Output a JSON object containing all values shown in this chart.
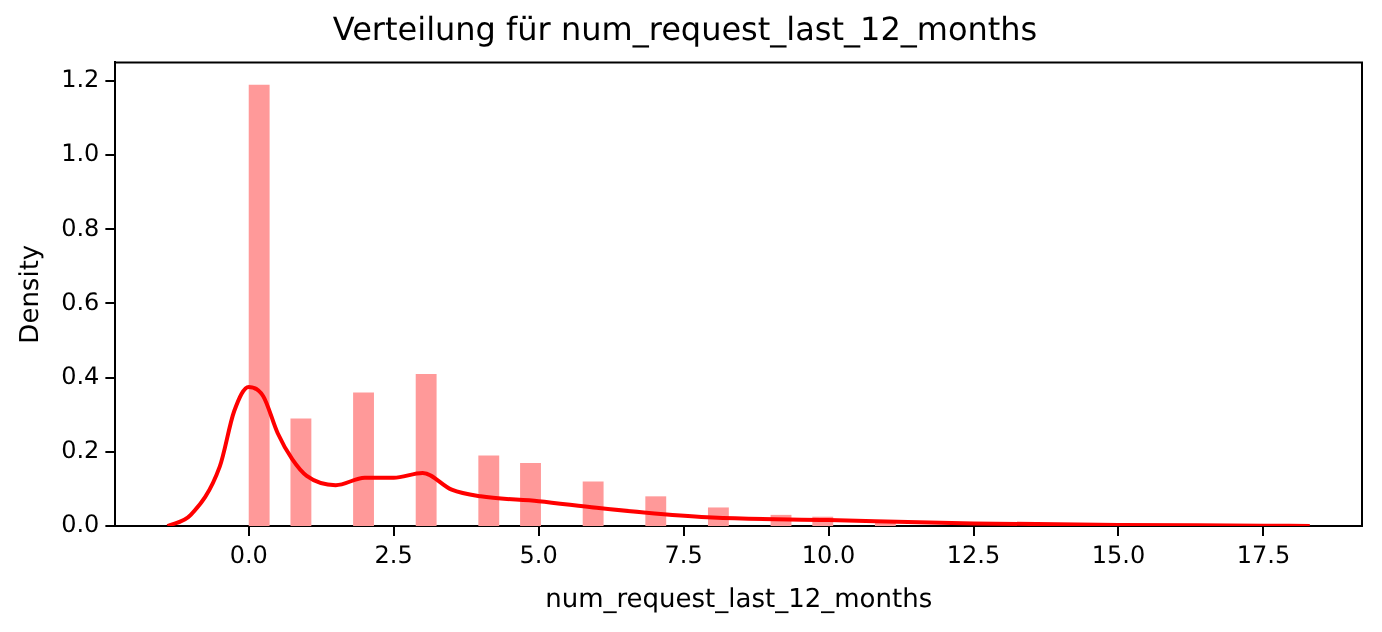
{
  "chart_data": {
    "type": "histogram",
    "title": "Verteilung für num_request_last_12_months",
    "xlabel": "num_request_last_12_months",
    "ylabel": "Density",
    "bins": [
      0,
      0.36,
      0.72,
      1.08,
      1.44,
      1.8,
      2.16,
      2.52,
      2.88,
      3.24,
      3.6,
      3.96,
      4.32,
      4.68,
      5.04,
      5.4,
      5.76,
      6.12,
      6.48,
      6.84,
      7.2,
      7.56,
      7.92,
      8.28,
      8.64,
      9,
      9.36,
      9.72,
      10.08,
      10.44,
      10.8,
      11.16,
      11.52,
      11.88,
      12.24,
      12.6,
      12.96,
      13.32,
      13.68,
      14.04,
      14.4,
      14.76,
      15.12,
      15.48,
      15.84,
      16.2,
      16.56,
      16.92,
      17.28,
      17.64,
      18
    ],
    "values": [
      1.19,
      0,
      0.29,
      0,
      0,
      0.36,
      0,
      0,
      0.41,
      0,
      0,
      0.19,
      0,
      0.17,
      0,
      0,
      0.12,
      0,
      0,
      0.08,
      0,
      0,
      0.05,
      0,
      0,
      0.03,
      0,
      0.025,
      0,
      0,
      0.01,
      0,
      0,
      0,
      0,
      0,
      0,
      0,
      0,
      0,
      0,
      0,
      0,
      0,
      0,
      0,
      0,
      0,
      0,
      0
    ],
    "color": "#ff9999",
    "series": [
      {
        "type": "line",
        "color": "#ff0000",
        "x": [
          -1.4,
          -1,
          -0.5,
          -0.25,
          0,
          0.25,
          0.5,
          0.75,
          1,
          1.5,
          2,
          2.5,
          3,
          3.5,
          4,
          5,
          6,
          7,
          8,
          10,
          12.5,
          15,
          17.5,
          18.3
        ],
        "values": [
          0,
          0.03,
          0.16,
          0.31,
          0.375,
          0.35,
          0.25,
          0.18,
          0.135,
          0.11,
          0.13,
          0.13,
          0.143,
          0.098,
          0.08,
          0.067,
          0.049,
          0.034,
          0.023,
          0.016,
          0.007,
          0.003,
          0.001,
          0
        ]
      }
    ],
    "xlim": [
      -2.3,
      19.2
    ],
    "ylim": [
      0,
      1.25
    ],
    "xticks": [
      {
        "value": 0,
        "label": "0.0"
      },
      {
        "value": 2.5,
        "label": "2.5"
      },
      {
        "value": 5,
        "label": "5.0"
      },
      {
        "value": 7.5,
        "label": "7.5"
      },
      {
        "value": 10,
        "label": "10.0"
      },
      {
        "value": 12.5,
        "label": "12.5"
      },
      {
        "value": 15,
        "label": "15.0"
      },
      {
        "value": 17.5,
        "label": "17.5"
      }
    ],
    "yticks": [
      {
        "value": 0,
        "label": "0.0"
      },
      {
        "value": 0.2,
        "label": "0.2"
      },
      {
        "value": 0.4,
        "label": "0.4"
      },
      {
        "value": 0.6,
        "label": "0.6"
      },
      {
        "value": 0.8,
        "label": "0.8"
      },
      {
        "value": 1,
        "label": "1.0"
      },
      {
        "value": 1.2,
        "label": "1.2"
      }
    ]
  }
}
